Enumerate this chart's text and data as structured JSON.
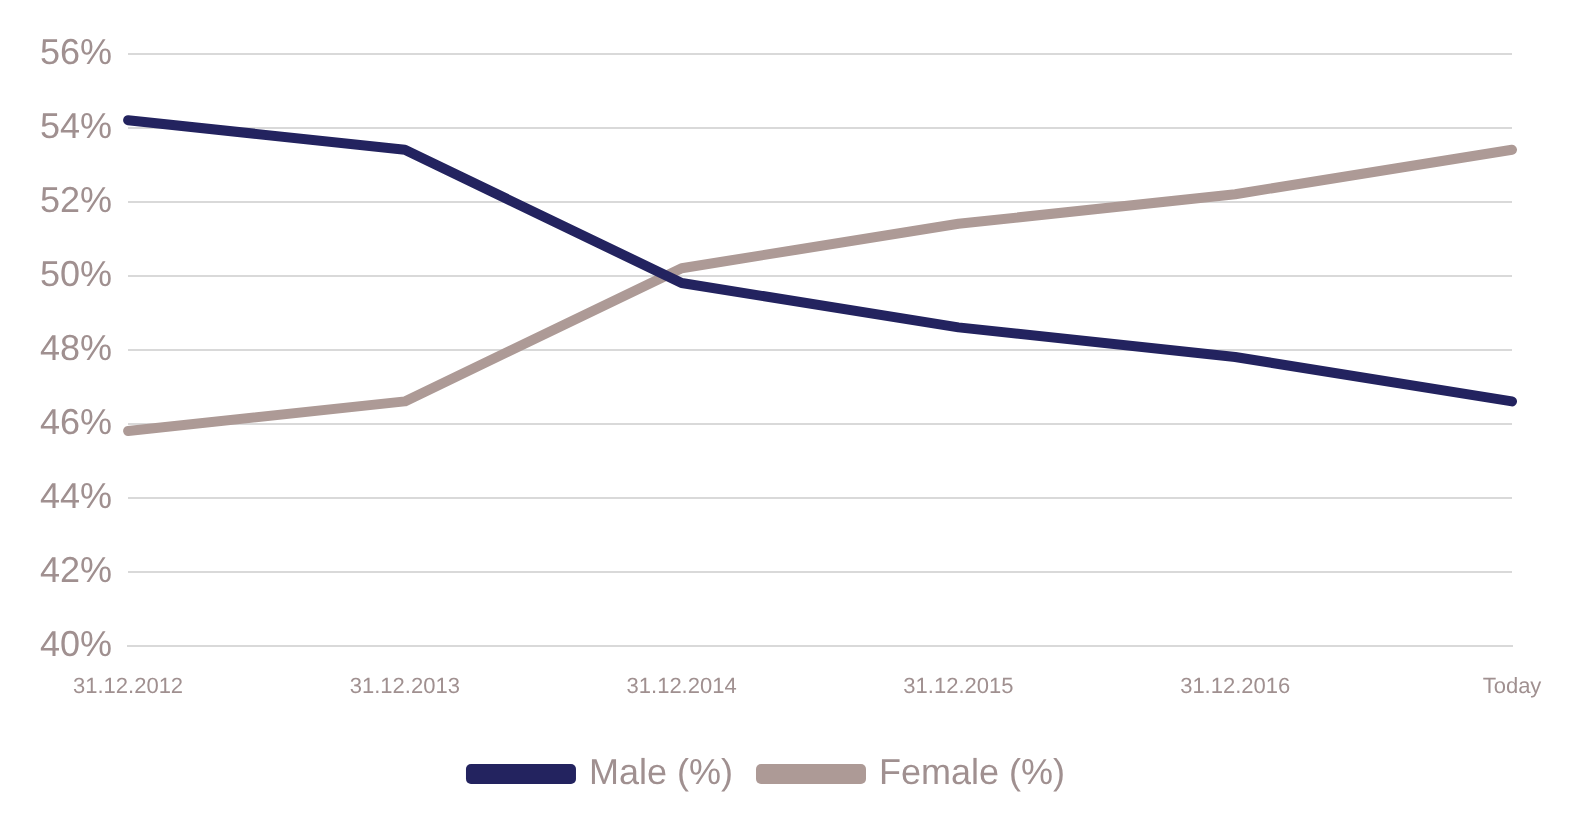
{
  "chart_data": {
    "type": "line",
    "categories": [
      "31.12.2012",
      "31.12.2013",
      "31.12.2014",
      "31.12.2015",
      "31.12.2016",
      "Today"
    ],
    "series": [
      {
        "name": "Male (%)",
        "color": "#23235f",
        "values": [
          54.2,
          53.4,
          49.8,
          48.6,
          47.8,
          46.6
        ]
      },
      {
        "name": "Female (%)",
        "color": "#ad9a96",
        "values": [
          45.8,
          46.6,
          50.2,
          51.4,
          52.2,
          53.4
        ]
      }
    ],
    "ylim": [
      40,
      56
    ],
    "yticks": [
      {
        "value": 40,
        "label": "40%"
      },
      {
        "value": 42,
        "label": "42%"
      },
      {
        "value": 44,
        "label": "44%"
      },
      {
        "value": 46,
        "label": "46%"
      },
      {
        "value": 48,
        "label": "48%"
      },
      {
        "value": 50,
        "label": "50%"
      },
      {
        "value": 52,
        "label": "52%"
      },
      {
        "value": 54,
        "label": "54%"
      },
      {
        "value": 56,
        "label": "56%"
      }
    ],
    "grid": "y",
    "legend": "bottom",
    "marker": "none",
    "line_style": "solid"
  }
}
